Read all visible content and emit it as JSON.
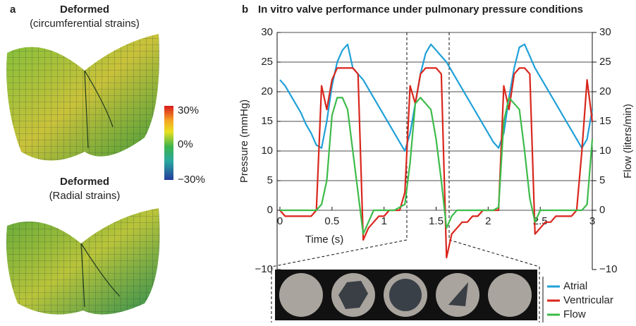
{
  "panel_a": {
    "letter": "a",
    "top_title": "Deformed",
    "top_subtitle": "(circumferential strains)",
    "bottom_title": "Deformed",
    "bottom_subtitle": "(Radial strains)",
    "colorbar_labels": [
      "30%",
      "0%",
      "−30%"
    ]
  },
  "chart_data": {
    "type": "line",
    "letter": "b",
    "title": "In vitro valve performance under pulmonary pressure conditions",
    "x_label": "Time (s)",
    "y_label": "Pressure (mmHg)",
    "y2_label": "Flow (liters/min)",
    "x": [
      0,
      0.05,
      0.1,
      0.15,
      0.2,
      0.25,
      0.3,
      0.35,
      0.4,
      0.45,
      0.5,
      0.55,
      0.6,
      0.65,
      0.7,
      0.75,
      0.8,
      0.85,
      0.9,
      0.95,
      1,
      1.05,
      1.1,
      1.15,
      1.2,
      1.25,
      1.3,
      1.35,
      1.4,
      1.45,
      1.5,
      1.55,
      1.6,
      1.65,
      1.7,
      1.75,
      1.8,
      1.85,
      1.9,
      1.95,
      2,
      2.05,
      2.1,
      2.15,
      2.2,
      2.25,
      2.3,
      2.35,
      2.4,
      2.45,
      2.5,
      2.55,
      2.6,
      2.65,
      2.7,
      2.75,
      2.8,
      2.85,
      2.9,
      2.95,
      3
    ],
    "series": [
      {
        "name": "Atrial",
        "color": "#1fa0d8",
        "values": [
          22,
          21,
          19.5,
          18,
          16.5,
          14.5,
          13,
          11,
          10.5,
          15,
          21,
          25,
          27,
          28,
          24,
          23,
          22,
          20.5,
          19,
          17.5,
          16,
          14.5,
          13,
          11.5,
          10,
          13,
          18,
          23,
          26.5,
          28,
          27,
          26,
          25,
          23.5,
          22,
          20.5,
          19,
          17.5,
          16,
          14.5,
          13,
          11.5,
          10.5,
          13,
          19,
          24,
          27.5,
          28,
          26,
          24,
          22.5,
          21,
          19.5,
          18,
          16.5,
          15,
          13.5,
          12,
          10.5,
          12,
          17
        ]
      },
      {
        "name": "Ventricular",
        "color": "#d9261c",
        "values": [
          0,
          -1,
          -1,
          -1,
          -1,
          -1,
          -1,
          0,
          21,
          17,
          22,
          24,
          24,
          24,
          24,
          23,
          -5,
          -3,
          -2,
          -1,
          -1,
          0,
          0,
          0,
          3,
          21,
          18,
          23,
          24,
          24,
          24,
          23,
          -8,
          -4,
          -3,
          -2,
          -2,
          -1,
          -1,
          0,
          0,
          0,
          0,
          21,
          17,
          23,
          24,
          24,
          23,
          -4,
          -3,
          -2,
          -2,
          -1,
          -1,
          -1,
          -1,
          0,
          10,
          22,
          15
        ]
      },
      {
        "name": "Flow",
        "color": "#3dbb4a",
        "axis": "y2",
        "values": [
          0,
          0,
          0,
          0,
          0,
          0,
          0,
          0,
          1,
          5,
          16,
          19,
          19,
          17,
          10,
          3,
          -4,
          -2,
          0,
          0,
          0,
          0,
          0,
          0.5,
          1,
          8,
          18,
          19,
          18,
          17,
          12,
          5,
          -3,
          -1,
          0,
          0,
          0,
          0,
          0,
          0,
          0,
          0,
          0.5,
          15,
          19,
          18,
          17,
          10,
          2,
          -2,
          0,
          0,
          0,
          0,
          0,
          0,
          0,
          0,
          0,
          1,
          12
        ]
      }
    ],
    "xlim": [
      0,
      3
    ],
    "xticks": [
      0,
      0.5,
      1,
      1.5,
      2,
      2.5,
      3
    ],
    "ylim": [
      -10,
      30
    ],
    "yticks": [
      30,
      25,
      20,
      15,
      10,
      5,
      0,
      {
        "value": -10,
        "label": "−10"
      }
    ],
    "y2lim": [
      -10,
      30
    ],
    "y2ticks": [
      30,
      25,
      20,
      15,
      10,
      5,
      0,
      {
        "value": -10,
        "label": "−10"
      }
    ],
    "grid": true,
    "legend": "bottom-right"
  }
}
